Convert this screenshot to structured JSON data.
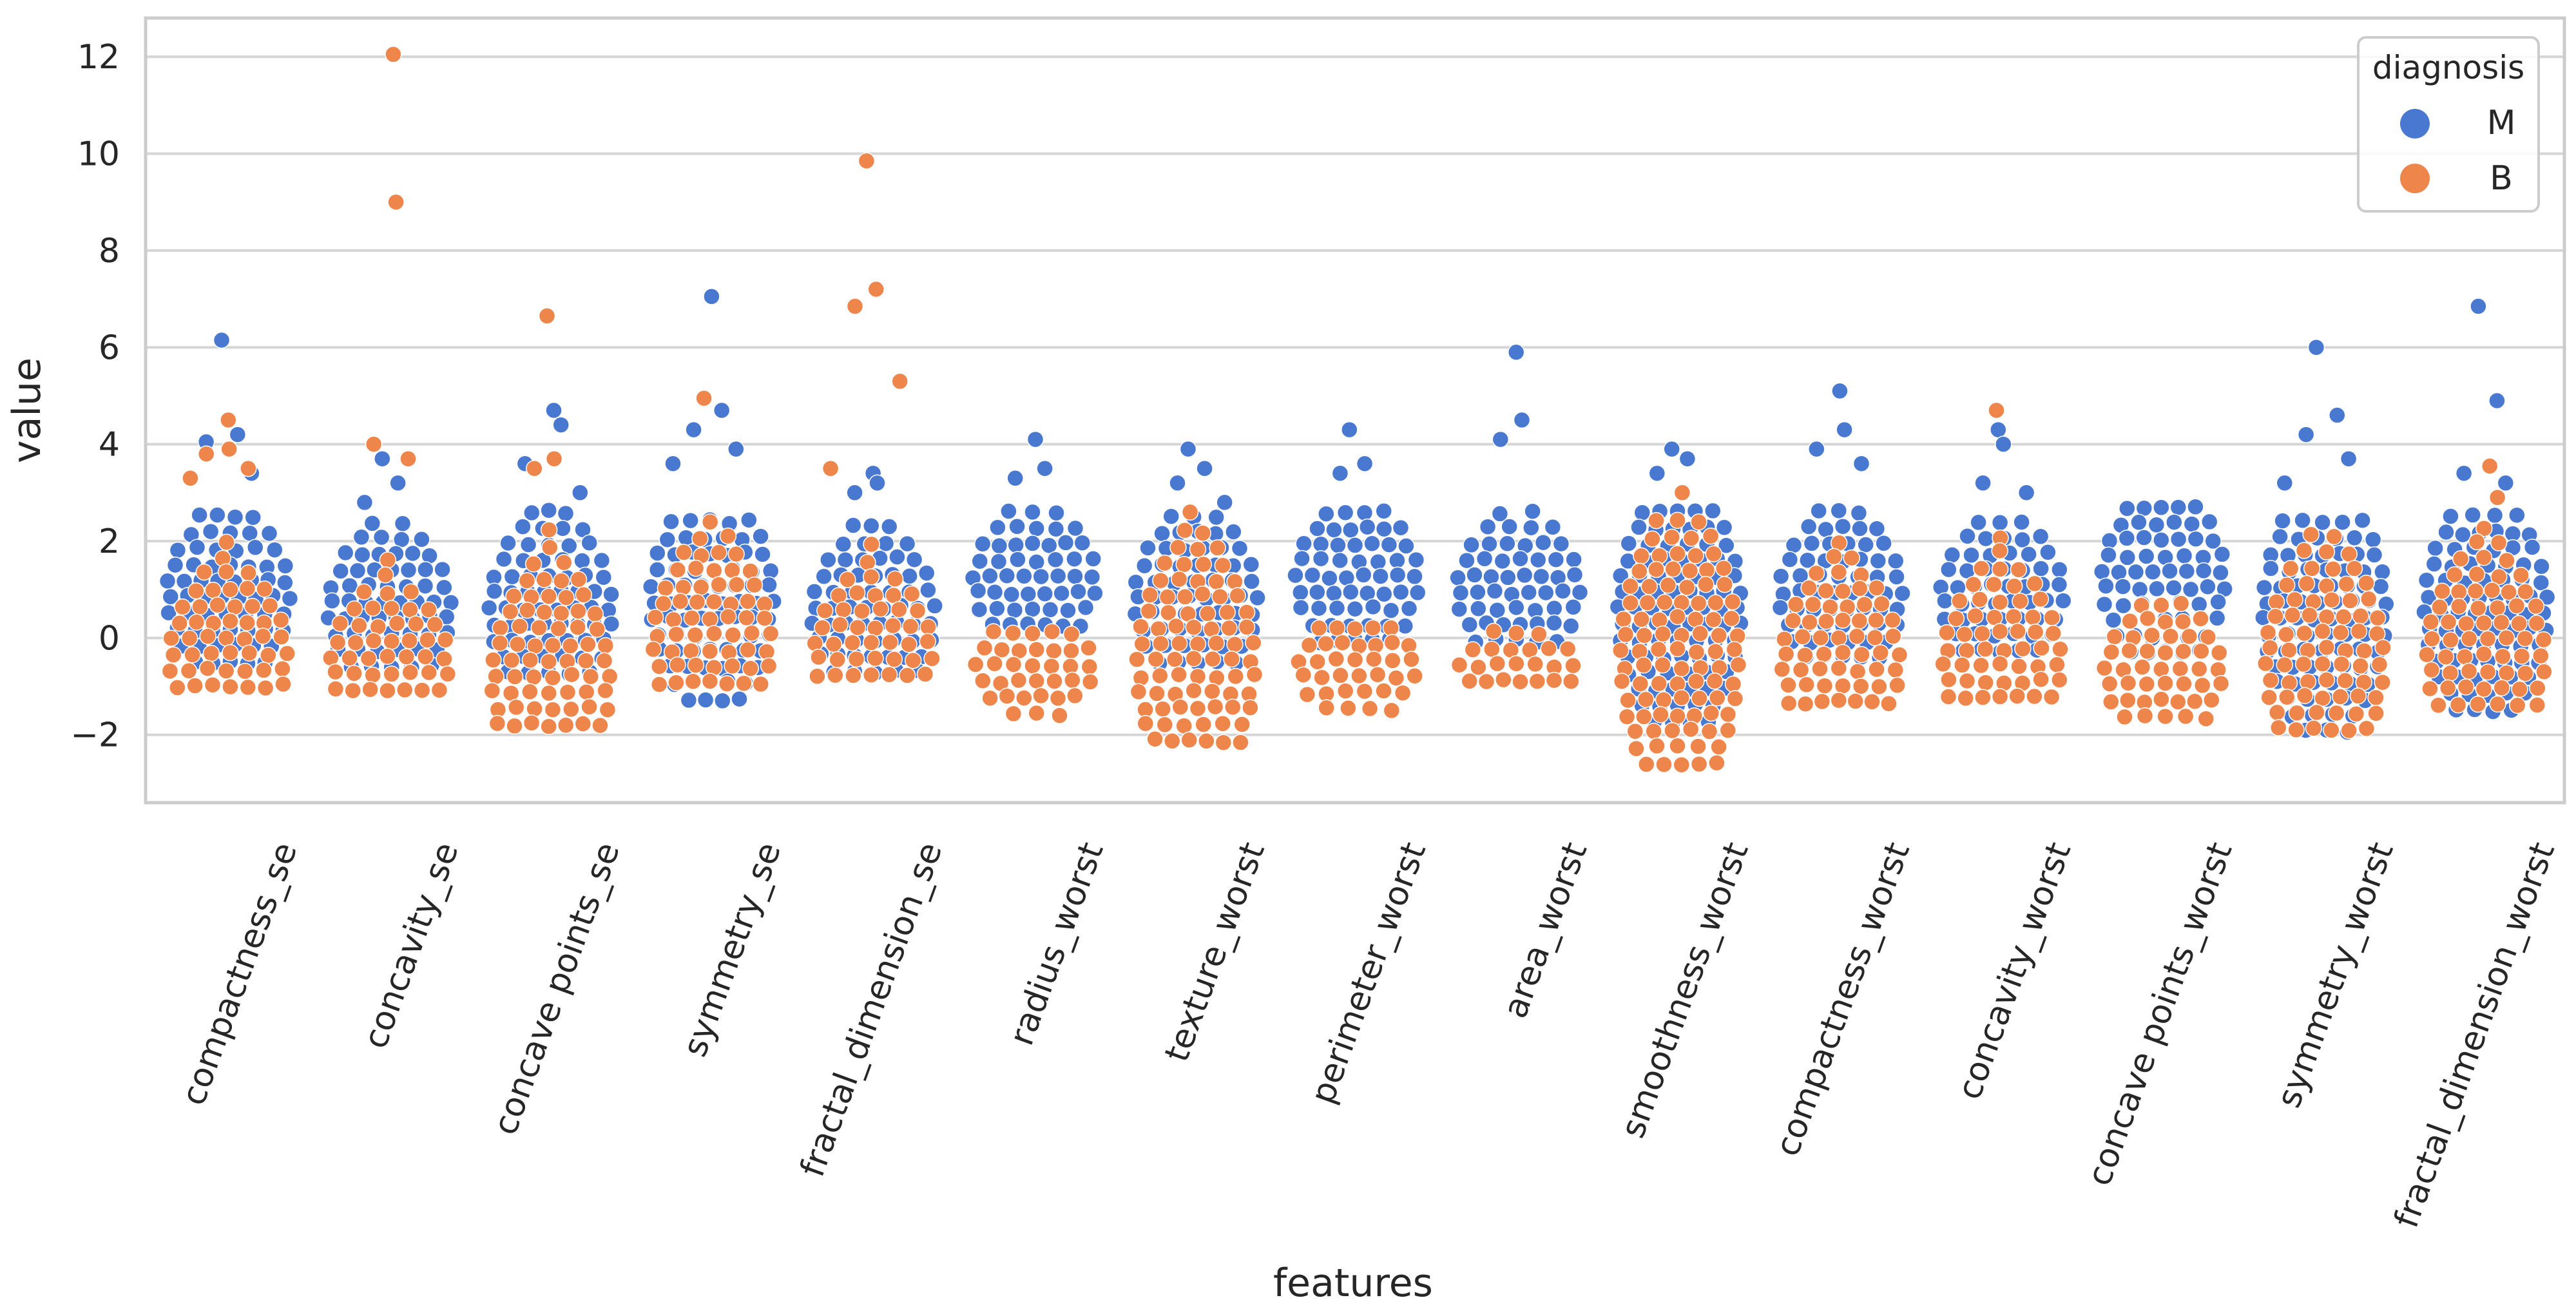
{
  "chart_data": {
    "type": "scatter",
    "subtype": "swarm",
    "title": "",
    "xlabel": "features",
    "ylabel": "value",
    "ylim": [
      -3.4,
      12.8
    ],
    "yticks": [
      -2,
      0,
      2,
      4,
      6,
      8,
      10,
      12
    ],
    "ytick_labels": [
      "−2",
      "0",
      "2",
      "4",
      "6",
      "8",
      "10",
      "12"
    ],
    "grid": true,
    "categories": [
      "compactness_se",
      "concavity_se",
      "concave points_se",
      "symmetry_se",
      "fractal_dimension_se",
      "radius_worst",
      "texture_worst",
      "perimeter_worst",
      "area_worst",
      "smoothness_worst",
      "compactness_worst",
      "concavity_worst",
      "concave points_worst",
      "symmetry_worst",
      "fractal_dimension_worst"
    ],
    "legend": {
      "title": "diagnosis",
      "placement": "top-right",
      "entries": [
        {
          "label": "M",
          "color": "#4878d0"
        },
        {
          "label": "B",
          "color": "#ee854a"
        }
      ]
    },
    "series_summary": [
      {
        "feature": "compactness_se",
        "M": {
          "median": 0.9,
          "range": [
            -0.6,
            2.5
          ]
        },
        "B": {
          "median": -0.4,
          "range": [
            -1.2,
            2.0
          ]
        },
        "M_outliers": [
          6.15,
          4.2,
          4.05,
          3.4
        ],
        "B_outliers": [
          4.5,
          3.9,
          3.8,
          3.5,
          3.3
        ]
      },
      {
        "feature": "concavity_se",
        "M": {
          "median": 0.6,
          "range": [
            -0.6,
            2.4
          ]
        },
        "B": {
          "median": -0.5,
          "range": [
            -1.1,
            1.6
          ]
        },
        "M_outliers": [
          3.7,
          3.2,
          2.8
        ],
        "B_outliers": [
          12.05,
          9.0,
          4.0,
          3.7
        ]
      },
      {
        "feature": "concave points_se",
        "M": {
          "median": 0.6,
          "range": [
            -0.8,
            2.6
          ]
        },
        "B": {
          "median": -0.9,
          "range": [
            -1.9,
            2.2
          ]
        },
        "M_outliers": [
          4.7,
          4.4,
          3.6,
          3.0
        ],
        "B_outliers": [
          6.65,
          3.7,
          3.5
        ]
      },
      {
        "feature": "symmetry_se",
        "M": {
          "median": 0.8,
          "range": [
            -1.5,
            2.4
          ]
        },
        "B": {
          "median": -0.1,
          "range": [
            -1.2,
            2.4
          ]
        },
        "M_outliers": [
          7.05,
          4.7,
          4.3,
          3.9,
          3.6
        ],
        "B_outliers": [
          4.95
        ]
      },
      {
        "feature": "fractal_dimension_se",
        "M": {
          "median": 0.5,
          "range": [
            -0.8,
            2.3
          ]
        },
        "B": {
          "median": -0.3,
          "range": [
            -1.0,
            1.9
          ]
        },
        "M_outliers": [
          3.4,
          3.2,
          3.0
        ],
        "B_outliers": [
          9.85,
          7.2,
          6.85,
          5.3,
          3.5
        ]
      },
      {
        "feature": "radius_worst",
        "M": {
          "median": 1.2,
          "range": [
            0.0,
            2.6
          ]
        },
        "B": {
          "median": -0.6,
          "range": [
            -1.7,
            0.1
          ]
        },
        "M_outliers": [
          4.1,
          3.5,
          3.3
        ],
        "B_outliers": []
      },
      {
        "feature": "texture_worst",
        "M": {
          "median": 0.8,
          "range": [
            -0.6,
            2.5
          ]
        },
        "B": {
          "median": -0.6,
          "range": [
            -2.2,
            2.2
          ]
        },
        "M_outliers": [
          3.9,
          3.5,
          3.2,
          2.8
        ],
        "B_outliers": [
          2.6
        ]
      },
      {
        "feature": "perimeter_worst",
        "M": {
          "median": 1.2,
          "range": [
            -0.2,
            2.6
          ]
        },
        "B": {
          "median": -0.6,
          "range": [
            -1.7,
            0.2
          ]
        },
        "M_outliers": [
          4.3,
          3.6,
          3.4
        ],
        "B_outliers": []
      },
      {
        "feature": "area_worst",
        "M": {
          "median": 1.0,
          "range": [
            -0.1,
            2.6
          ]
        },
        "B": {
          "median": -0.6,
          "range": [
            -1.2,
            0.1
          ]
        },
        "M_outliers": [
          5.9,
          4.5,
          4.1
        ],
        "B_outliers": []
      },
      {
        "feature": "smoothness_worst",
        "M": {
          "median": 0.6,
          "range": [
            -1.9,
            2.6
          ]
        },
        "B": {
          "median": -0.4,
          "range": [
            -2.7,
            2.4
          ]
        },
        "M_outliers": [
          3.9,
          3.7,
          3.4
        ],
        "B_outliers": [
          3.0
        ]
      },
      {
        "feature": "compactness_worst",
        "M": {
          "median": 0.9,
          "range": [
            -0.4,
            2.6
          ]
        },
        "B": {
          "median": -0.5,
          "range": [
            -1.4,
            2.0
          ]
        },
        "M_outliers": [
          5.1,
          4.3,
          3.9,
          3.6
        ],
        "B_outliers": []
      },
      {
        "feature": "concavity_worst",
        "M": {
          "median": 0.9,
          "range": [
            -0.3,
            2.4
          ]
        },
        "B": {
          "median": -0.5,
          "range": [
            -1.3,
            2.1
          ]
        },
        "M_outliers": [
          4.3,
          4.0,
          3.2,
          3.0
        ],
        "B_outliers": [
          4.7
        ]
      },
      {
        "feature": "concave points_worst",
        "M": {
          "median": 1.2,
          "range": [
            -0.6,
            2.7
          ]
        },
        "B": {
          "median": -0.7,
          "range": [
            -1.8,
            0.7
          ]
        },
        "M_outliers": [],
        "B_outliers": []
      },
      {
        "feature": "symmetry_worst",
        "M": {
          "median": 0.6,
          "range": [
            -2.1,
            2.4
          ]
        },
        "B": {
          "median": -0.5,
          "range": [
            -2.1,
            2.1
          ]
        },
        "M_outliers": [
          6.0,
          4.6,
          4.2,
          3.7,
          3.2
        ],
        "B_outliers": []
      },
      {
        "feature": "fractal_dimension_worst",
        "M": {
          "median": 0.6,
          "range": [
            -1.6,
            2.5
          ]
        },
        "B": {
          "median": -0.4,
          "range": [
            -1.5,
            2.3
          ]
        },
        "M_outliers": [
          6.85,
          4.9,
          3.4,
          3.2
        ],
        "B_outliers": [
          3.55,
          2.9
        ]
      }
    ]
  }
}
